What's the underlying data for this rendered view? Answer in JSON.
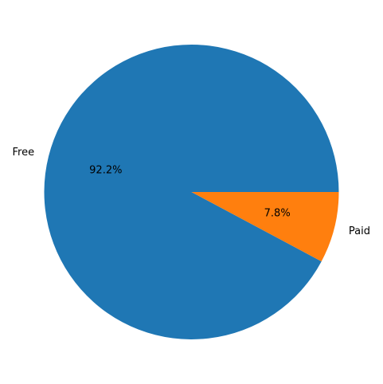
{
  "chart_data": {
    "type": "pie",
    "title": "",
    "categories": [
      "Free",
      "Paid"
    ],
    "values": [
      92.2,
      7.8
    ],
    "labels": [
      "92.2%",
      "7.8%"
    ],
    "colors": [
      "#1f77b4",
      "#ff7f0e"
    ],
    "start_angle_deg": 0,
    "direction": "counterclockwise",
    "legend": "none",
    "grid": false
  }
}
